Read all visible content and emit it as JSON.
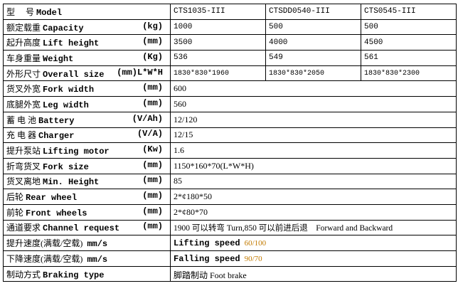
{
  "header": {
    "label_cn": "型　 号",
    "label_en": "Model",
    "models": [
      "CTS1035-III",
      "CTSDD0540-III",
      "CTS0545-III"
    ]
  },
  "rows3": [
    {
      "cn": "额定载重",
      "en": "Capacity",
      "unit": "(kg)",
      "values": [
        "1000",
        "500",
        "500"
      ]
    },
    {
      "cn": "起升高度",
      "en": "Lift height",
      "unit": "(mm)",
      "values": [
        "3500",
        "4000",
        "4500"
      ]
    },
    {
      "cn": "车身重量",
      "en": "Weight",
      "unit": "(Kg)",
      "values": [
        "536",
        "549",
        "561"
      ]
    },
    {
      "cn": "外形尺寸",
      "en": "Overall size",
      "unit": "(mm)L*W*H",
      "values": [
        "1830*830*1960",
        "1830*830*2050",
        "1830*830*2300"
      ]
    }
  ],
  "rows1": [
    {
      "cn": "货叉外宽",
      "en": "Fork width",
      "unit": "(mm)",
      "value": "600"
    },
    {
      "cn": "底腿外宽",
      "en": "Leg width",
      "unit": "(mm)",
      "value": "560"
    },
    {
      "cn": "蓄 电 池",
      "en": "Battery",
      "unit": "(V/Ah)",
      "value": "12/120"
    },
    {
      "cn": "充 电 器",
      "en": "Charger",
      "unit": "(V/A)",
      "value": "12/15"
    },
    {
      "cn": "提升泵站",
      "en": "Lifting motor",
      "unit": "(Kw)",
      "value": "1.6"
    },
    {
      "cn": "折弯货叉",
      "en": "Fork size",
      "unit": "(mm)",
      "value": "1150*160*70(L*W*H)"
    },
    {
      "cn": "货叉离地",
      "en": "Min. Height",
      "unit": "(mm)",
      "value": "85"
    },
    {
      "cn": "后轮",
      "en": "Rear wheel",
      "unit": "(mm)",
      "value": "2*¢180*50"
    },
    {
      "cn": "前轮",
      "en": "Front wheels",
      "unit": "(mm)",
      "value": "2*¢80*70"
    },
    {
      "cn": "通道要求",
      "en": "Channel request",
      "unit": "(mm)",
      "value": "1900 可以转弯 Turn,850 可以前进后退　Forward and Backward"
    }
  ],
  "speed": [
    {
      "cn": "提升速度(满载/空载)",
      "unit": "mm/s",
      "label": "Lifting speed",
      "value": "60/100"
    },
    {
      "cn": "下降速度(满载/空载)",
      "unit": "mm/s",
      "label": "Falling speed",
      "value": "90/70"
    }
  ],
  "braking": {
    "cn": "制动方式",
    "en": "Braking type",
    "value": "脚踏制动 Foot brake"
  },
  "colors": {
    "speed_value": "#c27a00"
  }
}
